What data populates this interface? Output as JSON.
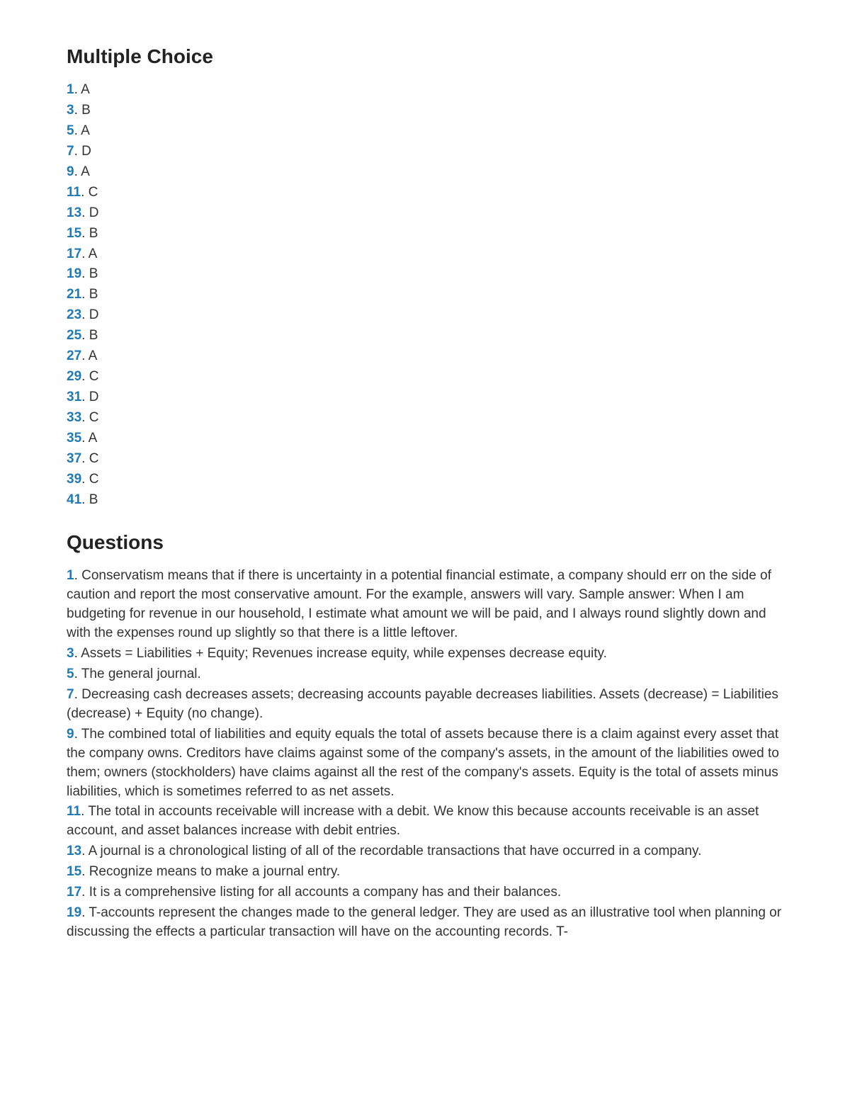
{
  "link_color": "#1f7bb6",
  "text_color": "#333333",
  "heading_color": "#222222",
  "background_color": "#ffffff",
  "font_family": "Helvetica Neue, Helvetica, Arial, sans-serif",
  "body_fontsize": 19,
  "heading_fontsize": 28,
  "sections": {
    "multiple_choice": {
      "heading": "Multiple Choice",
      "items": [
        {
          "num": "1",
          "ans": "A"
        },
        {
          "num": "3",
          "ans": "B"
        },
        {
          "num": "5",
          "ans": "A"
        },
        {
          "num": "7",
          "ans": "D"
        },
        {
          "num": "9",
          "ans": "A"
        },
        {
          "num": "11",
          "ans": "C"
        },
        {
          "num": "13",
          "ans": "D"
        },
        {
          "num": "15",
          "ans": "B"
        },
        {
          "num": "17",
          "ans": "A"
        },
        {
          "num": "19",
          "ans": "B"
        },
        {
          "num": "21",
          "ans": "B"
        },
        {
          "num": "23",
          "ans": "D"
        },
        {
          "num": "25",
          "ans": "B"
        },
        {
          "num": "27",
          "ans": "A"
        },
        {
          "num": "29",
          "ans": "C"
        },
        {
          "num": "31",
          "ans": "D"
        },
        {
          "num": "33",
          "ans": "C"
        },
        {
          "num": "35",
          "ans": "A"
        },
        {
          "num": "37",
          "ans": "C"
        },
        {
          "num": "39",
          "ans": "C"
        },
        {
          "num": "41",
          "ans": "B"
        }
      ]
    },
    "questions": {
      "heading": "Questions",
      "items": [
        {
          "num": "1",
          "text": "Conservatism means that if there is uncertainty in a potential financial estimate, a company should err on the side of caution and report the most conservative amount. For the example, answers will vary. Sample answer: When I am budgeting for revenue in our household, I estimate what amount we will be paid, and I always round slightly down and with the expenses round up slightly so that there is a little leftover."
        },
        {
          "num": "3",
          "text": "Assets = Liabilities + Equity; Revenues increase equity, while expenses decrease equity."
        },
        {
          "num": "5",
          "text": "The general journal."
        },
        {
          "num": "7",
          "text": "Decreasing cash decreases assets; decreasing accounts payable decreases liabilities. Assets (decrease) = Liabilities (decrease) + Equity (no change)."
        },
        {
          "num": "9",
          "text": "The combined total of liabilities and equity equals the total of assets because there is a claim against every asset that the company owns. Creditors have claims against some of the company's assets, in the amount of the liabilities owed to them; owners (stockholders) have claims against all the rest of the company's assets. Equity is the total of assets minus liabilities, which is sometimes referred to as net assets."
        },
        {
          "num": "11",
          "text": "The total in accounts receivable will increase with a debit. We know this because accounts receivable is an asset account, and asset balances increase with debit entries."
        },
        {
          "num": "13",
          "text": "A journal is a chronological listing of all of the recordable transactions that have occurred in a company."
        },
        {
          "num": "15",
          "text": "Recognize means to make a journal entry."
        },
        {
          "num": "17",
          "text": "It is a comprehensive listing for all accounts a company has and their balances."
        },
        {
          "num": "19",
          "text": "T-accounts represent the changes made to the general ledger. They are used as an illustrative tool when planning or discussing the effects a particular transaction will have on the accounting records. T-"
        }
      ]
    }
  }
}
